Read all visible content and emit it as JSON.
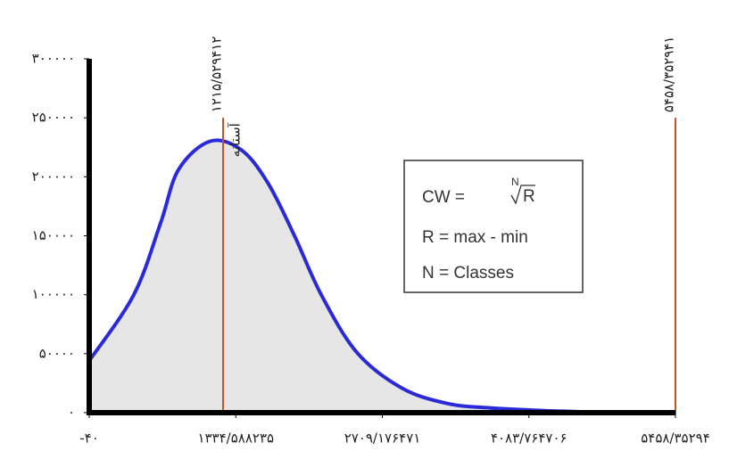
{
  "chart_data": {
    "type": "line",
    "x": [
      -40,
      378,
      630,
      797,
      1090,
      1383,
      1634,
      1885,
      2136,
      2471,
      2890,
      3308,
      3727,
      4564,
      5458.352941
    ],
    "values": [
      44000,
      100000,
      161000,
      206000,
      230000,
      223000,
      195000,
      150000,
      100000,
      51000,
      21000,
      8000,
      4000,
      800,
      0
    ],
    "color": "#2a2ad8",
    "fill": "#e6e6e6",
    "xlim": [
      -40,
      5458.352941
    ],
    "ylim": [
      0,
      300000
    ],
    "xticks": [
      {
        "value": -40,
        "label": "-۴۰"
      },
      {
        "value": 1334.588235,
        "label": "۱۳۳۴/۵۸۸۲۳۵"
      },
      {
        "value": 2709.176471,
        "label": "۲۷۰۹/۱۷۶۴۷۱"
      },
      {
        "value": 4083.764706,
        "label": "۴۰۸۳/۷۶۴۷۰۶"
      },
      {
        "value": 5458.352941,
        "label": "۵۴۵۸/۳۵۲۹۴"
      }
    ],
    "yticks": [
      {
        "value": 0,
        "label": "۰"
      },
      {
        "value": 50000,
        "label": "۵۰۰۰۰"
      },
      {
        "value": 100000,
        "label": "۱۰۰۰۰۰"
      },
      {
        "value": 150000,
        "label": "۱۵۰۰۰۰"
      },
      {
        "value": 200000,
        "label": "۲۰۰۰۰۰"
      },
      {
        "value": 250000,
        "label": "۲۵۰۰۰۰"
      },
      {
        "value": 300000,
        "label": "۳۰۰۰۰۰"
      }
    ],
    "vline_color": "#c8502a",
    "vlines": [
      {
        "x": 1215.529412,
        "top": 250000,
        "label": "۱۲۱۵/۵۲۹۴۱۲",
        "note": "آستانه"
      },
      {
        "x": 5458.352941,
        "top": 250000,
        "label": "۵۴۵۸/۳۵۲۹۴۱"
      }
    ]
  },
  "formula_box": {
    "lhs": "CW = ",
    "index": "N",
    "radicand": "R",
    "lines": [
      "R = max - min",
      "N = Classes"
    ]
  }
}
